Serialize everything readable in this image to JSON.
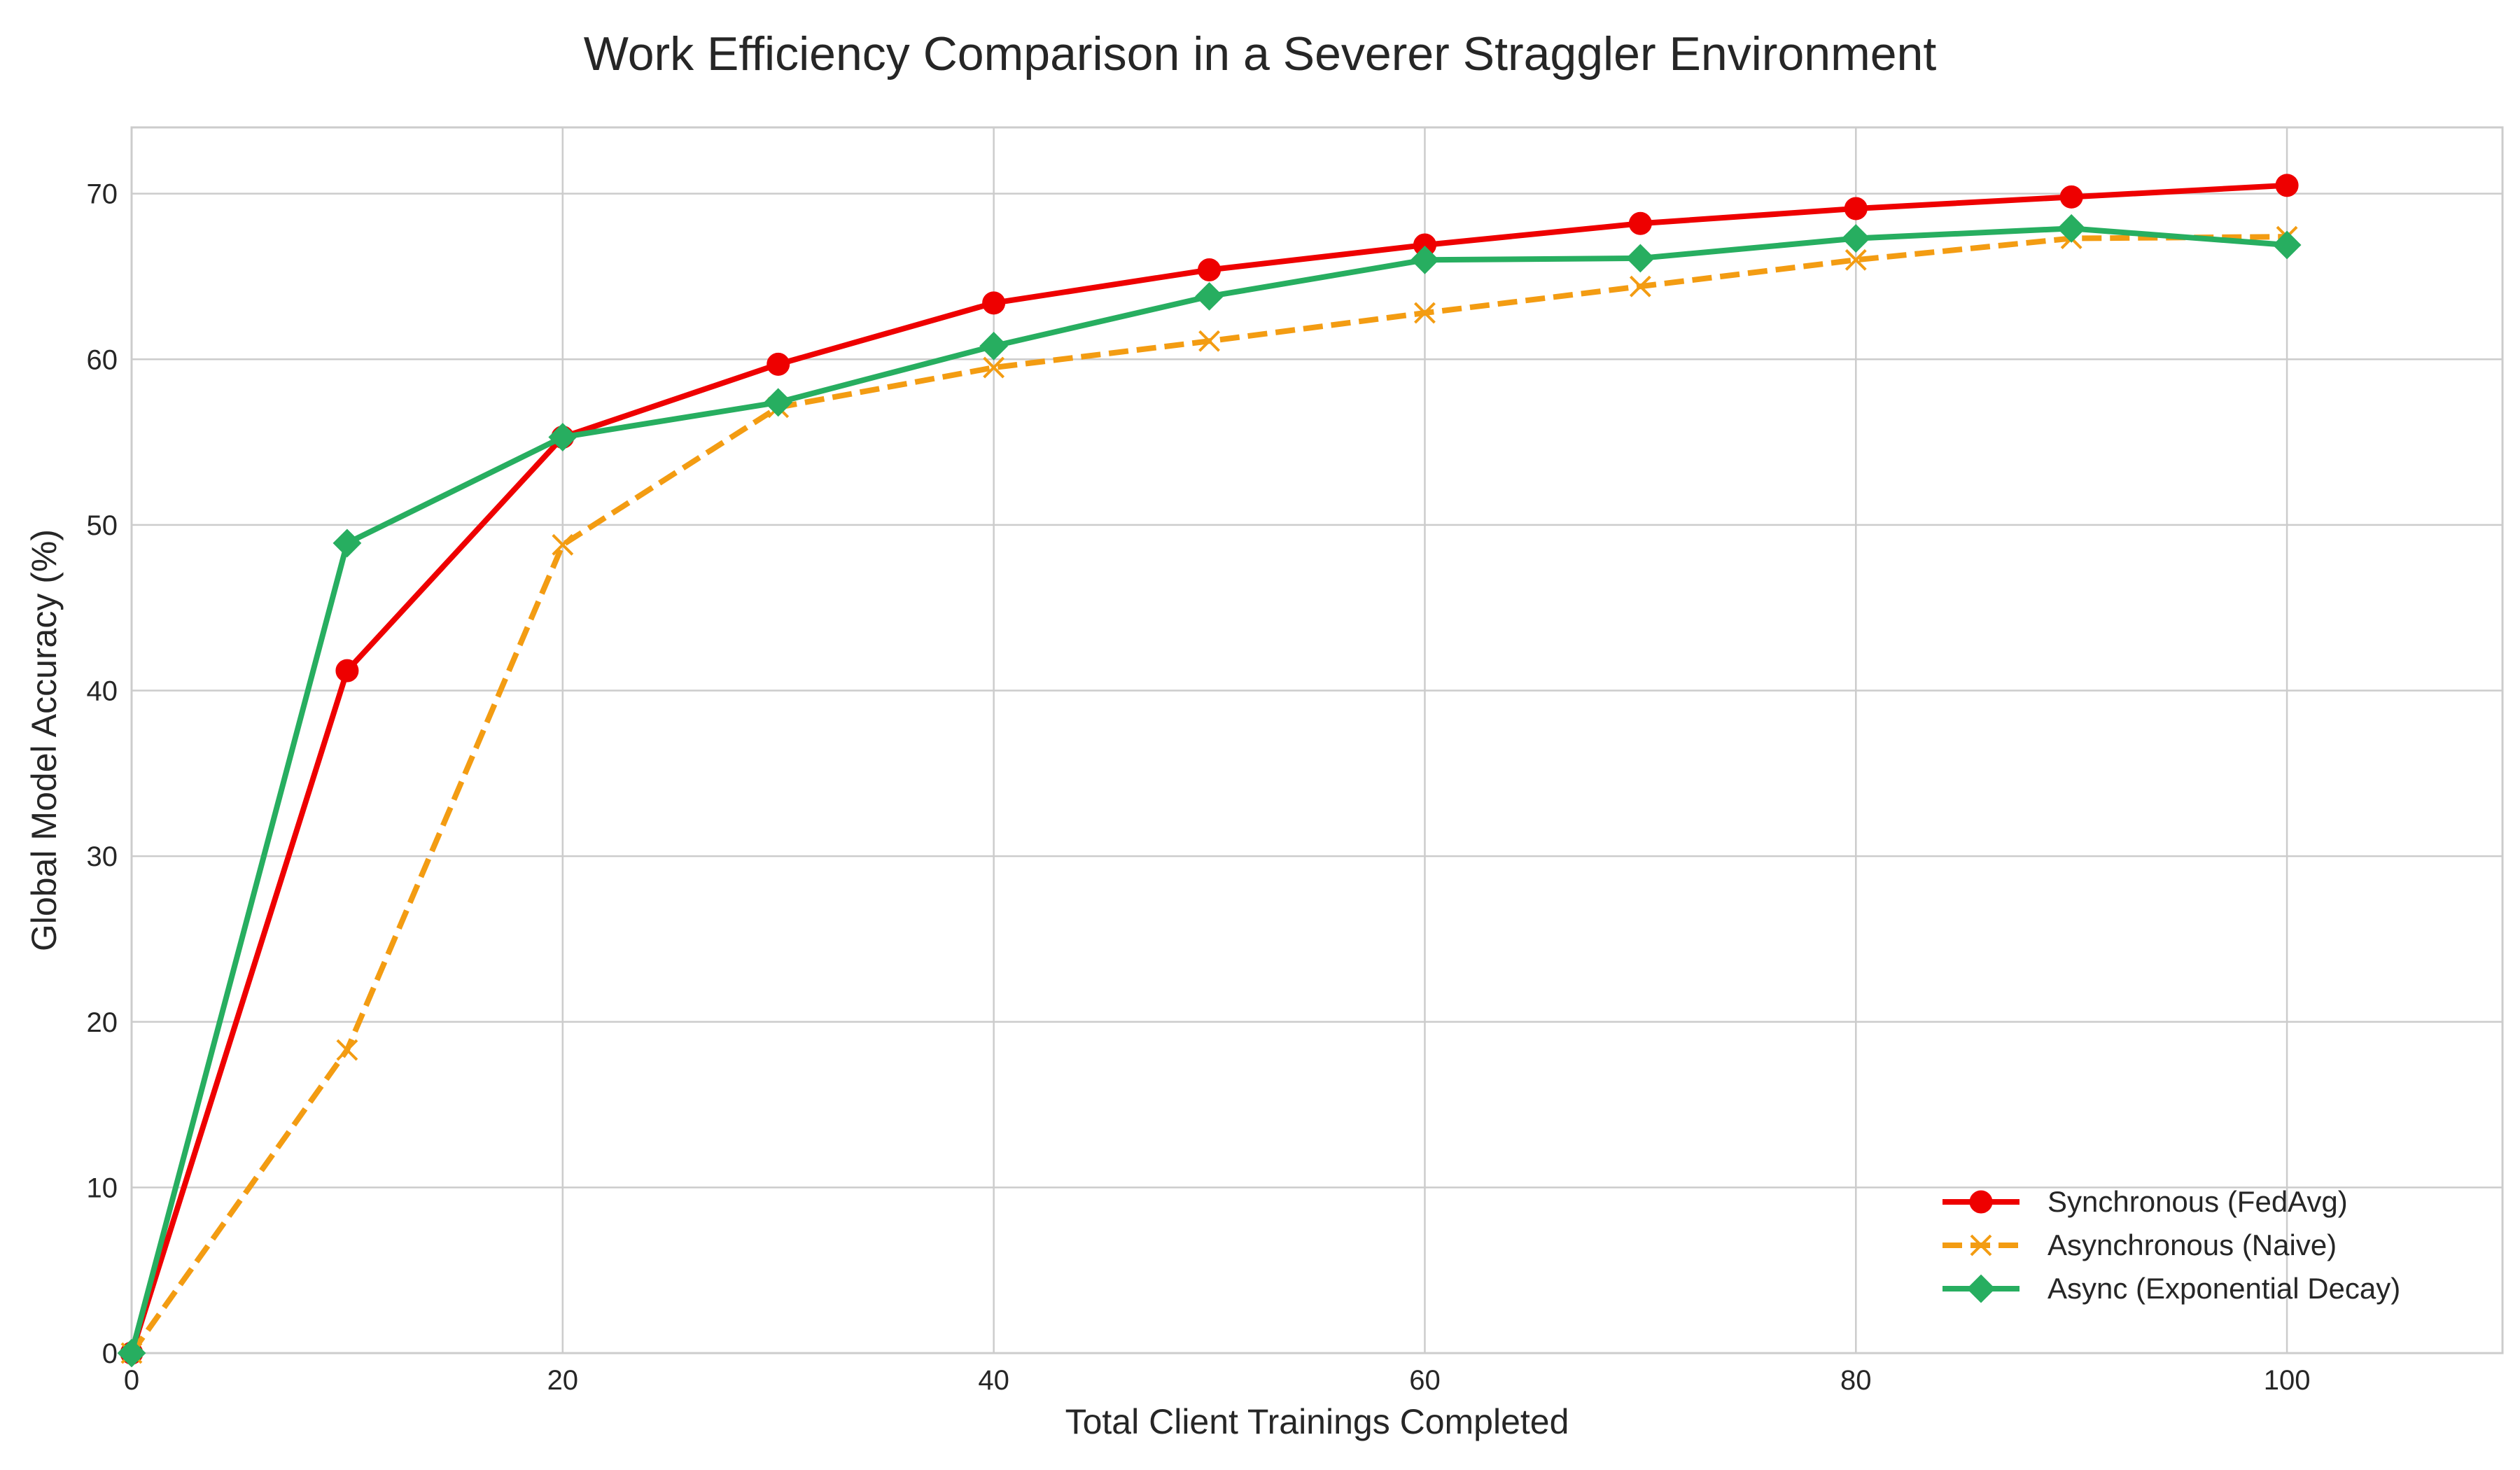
{
  "chart_data": {
    "type": "line",
    "title": "Work Efficiency Comparison in a Severer Straggler Environment",
    "xlabel": "Total Client Trainings Completed",
    "ylabel": "Global Model Accuracy (%)",
    "xlim": [
      0,
      110
    ],
    "ylim": [
      0,
      74
    ],
    "xticks": [
      0,
      20,
      40,
      60,
      80,
      100
    ],
    "yticks": [
      0,
      10,
      20,
      30,
      40,
      50,
      60,
      70
    ],
    "grid": true,
    "legend_position": "lower-right",
    "x": [
      0,
      10,
      20,
      30,
      40,
      50,
      60,
      70,
      80,
      90,
      100
    ],
    "series": [
      {
        "name": "Synchronous (FedAvg)",
        "color": "#ee0000",
        "line_style": "solid",
        "marker": "circle",
        "values": [
          0,
          41.2,
          55.3,
          59.7,
          63.4,
          65.4,
          66.9,
          68.2,
          69.1,
          69.8,
          70.5
        ]
      },
      {
        "name": "Asynchronous (Naive)",
        "color": "#f39c12",
        "line_style": "dashed",
        "marker": "x",
        "values": [
          0,
          18.3,
          48.8,
          57.1,
          59.5,
          61.1,
          62.8,
          64.4,
          66.0,
          67.3,
          67.4
        ]
      },
      {
        "name": "Async (Exponential Decay)",
        "color": "#27ae60",
        "line_style": "solid",
        "marker": "diamond",
        "values": [
          0,
          48.9,
          55.3,
          57.4,
          60.8,
          63.8,
          66.0,
          66.1,
          67.3,
          67.9,
          66.9
        ]
      }
    ]
  }
}
